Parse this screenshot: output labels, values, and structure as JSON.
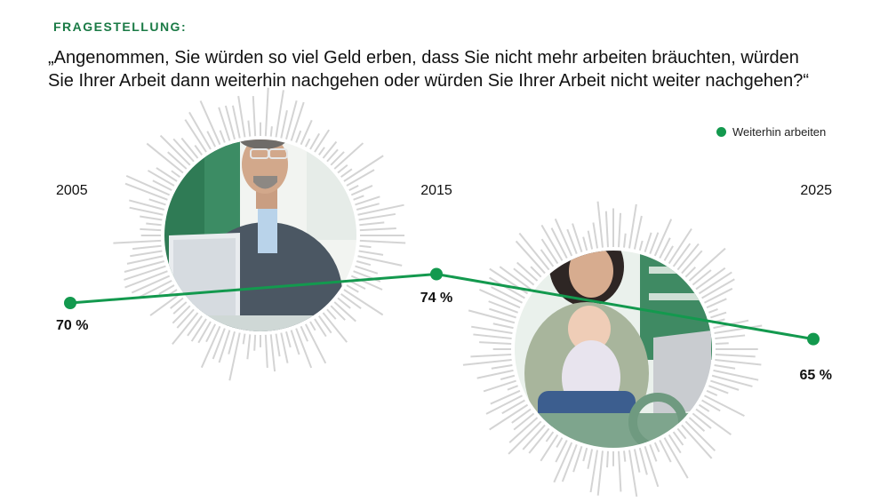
{
  "header": {
    "kicker": "FRAGESTELLUNG:",
    "question_line1": "„Angenommen, Sie würden so viel Geld erben, dass Sie nicht mehr arbeiten bräuchten, würden",
    "question_line2": "Sie Ihrer Arbeit dann weiterhin nachgehen oder würden Sie Ihrer Arbeit nicht weiter nachgehen?“"
  },
  "colors": {
    "series": "#13994e",
    "accent": "#1a7a45",
    "burst": "#d4d4d4"
  },
  "images": [
    "photo-businessman-laptop",
    "photo-mother-baby-laptop"
  ],
  "chart_data": {
    "type": "line",
    "x": [
      "2005",
      "2015",
      "2025"
    ],
    "series": [
      {
        "name": "Weiterhin arbeiten",
        "values": [
          70,
          74,
          65
        ],
        "labels": [
          "70 %",
          "74 %",
          "65 %"
        ]
      }
    ],
    "ylim": [
      60,
      80
    ],
    "legend": "top-right",
    "grid": false
  }
}
